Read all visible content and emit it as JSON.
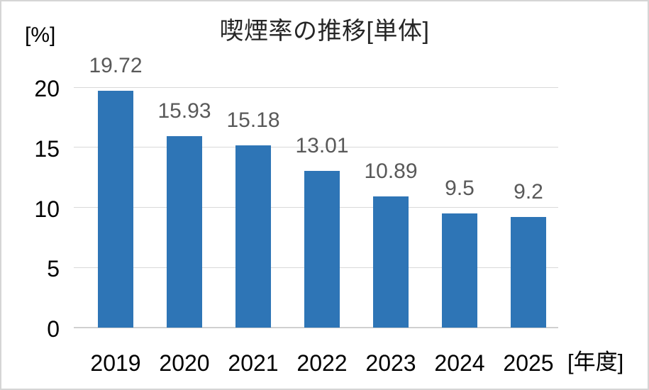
{
  "chart_data": {
    "type": "bar",
    "title": "喫煙率の推移[単体]",
    "y_unit_label": "[%]",
    "x_unit_label": "[年度]",
    "categories": [
      "2019",
      "2020",
      "2021",
      "2022",
      "2023",
      "2024",
      "2025"
    ],
    "values": [
      19.72,
      15.93,
      15.18,
      13.01,
      10.89,
      9.5,
      9.2
    ],
    "data_labels": [
      "19.72",
      "15.93",
      "15.18",
      "13.01",
      "10.89",
      "9.5",
      "9.2"
    ],
    "ylim": [
      0,
      20
    ],
    "yticks": [
      0,
      5,
      10,
      15,
      20
    ],
    "ytick_labels": [
      "0",
      "5",
      "10",
      "15",
      "20"
    ],
    "grid": true,
    "legend": "none",
    "bar_color": "#2e75b6",
    "label_color": "#595959",
    "tick_label_color": "#000000",
    "gridline_color": "#d9d9d9",
    "axis_color": "#d0d0d0"
  }
}
